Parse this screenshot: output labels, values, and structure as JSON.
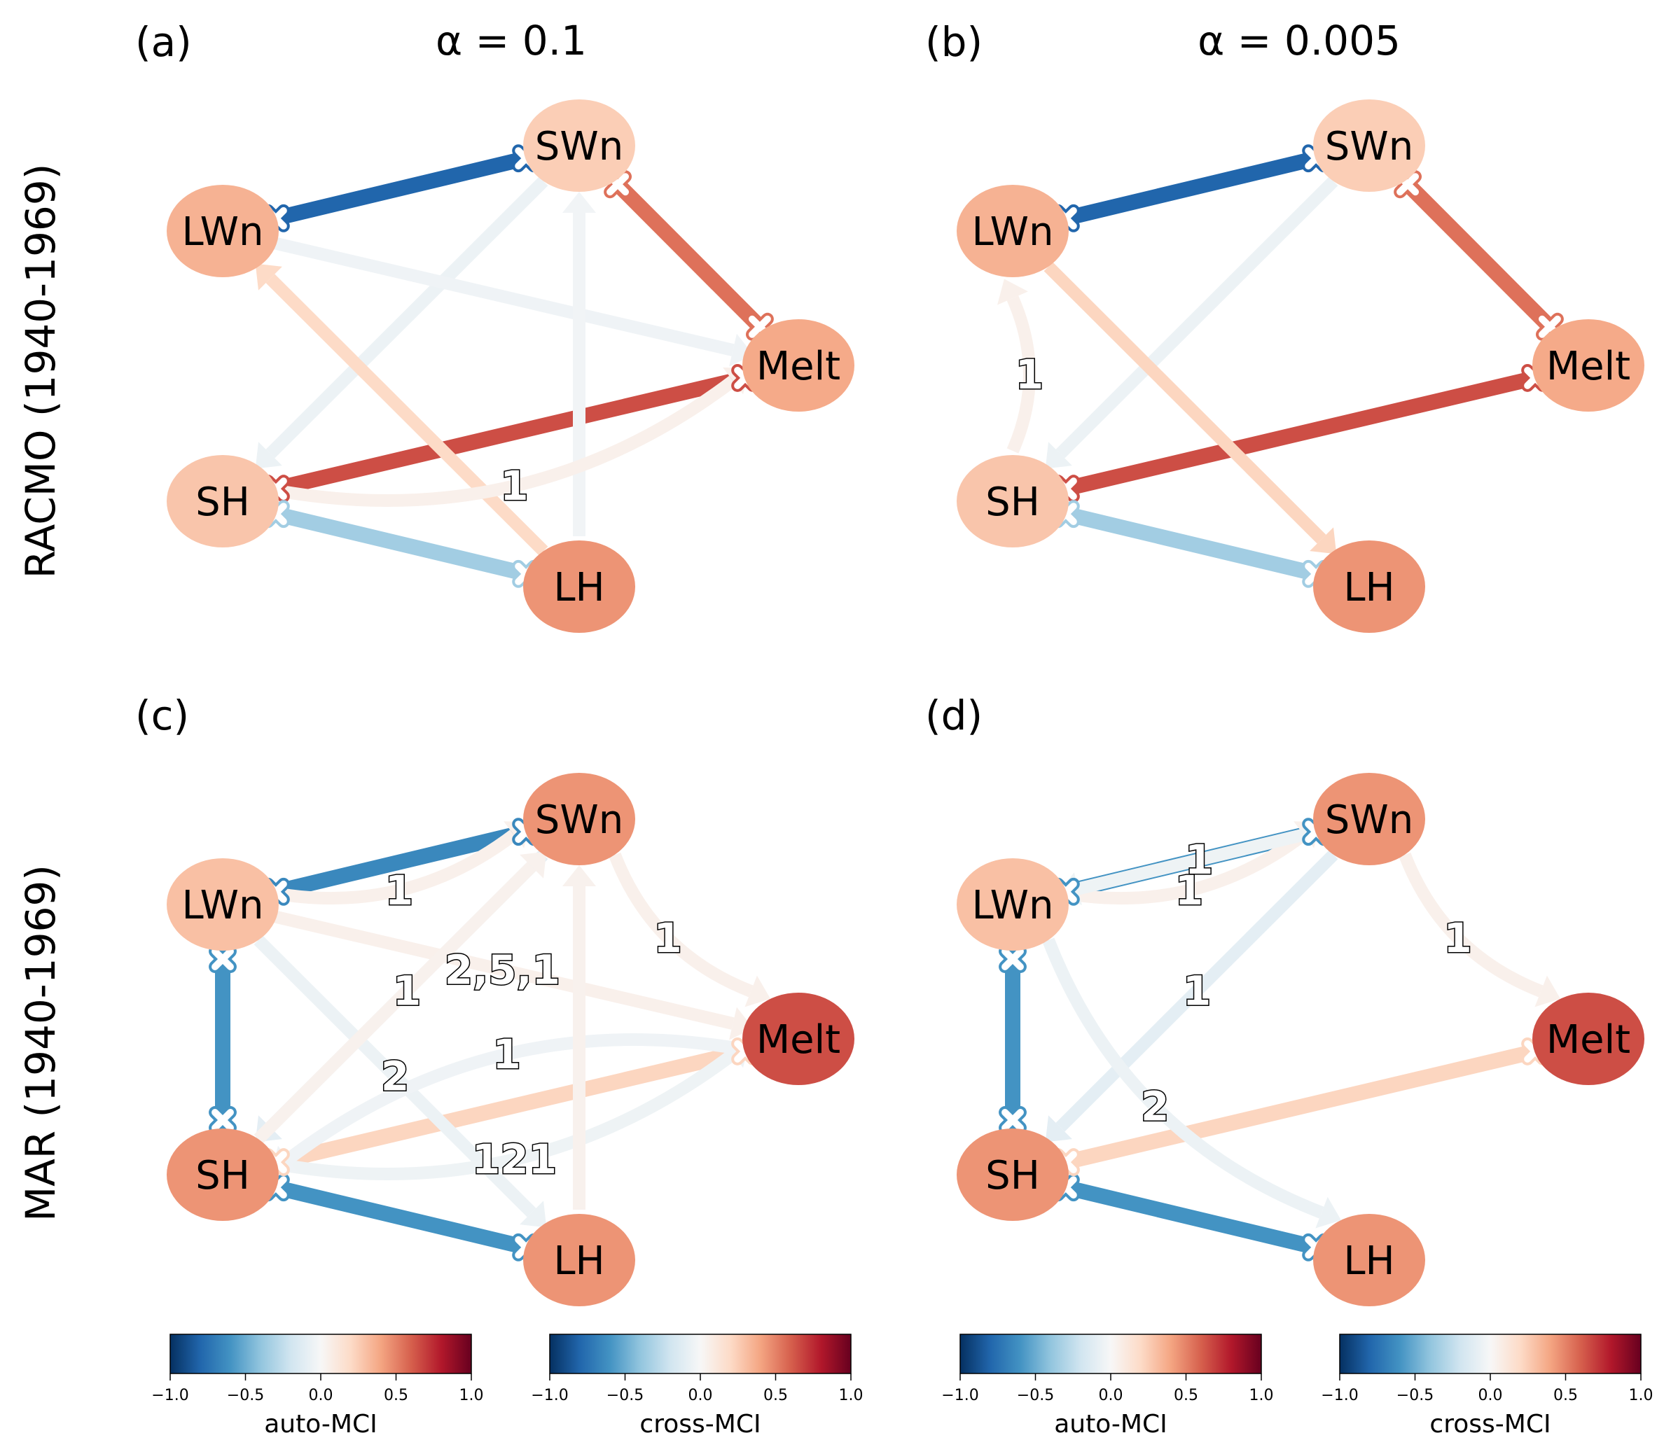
{
  "column_titles": {
    "a": "α = 0.1",
    "b": "α = 0.005"
  },
  "row_labels": {
    "top": "RACMO (1940-1969)",
    "bottom": "MAR (1940-1969)"
  },
  "panels": [
    {
      "id": "a",
      "label": "(a)",
      "nodes": [
        {
          "name": "SWn",
          "value": 0.25
        },
        {
          "name": "LWn",
          "value": 0.35
        },
        {
          "name": "Melt",
          "value": 0.38
        },
        {
          "name": "SH",
          "value": 0.28
        },
        {
          "name": "LH",
          "value": 0.45
        }
      ],
      "links": [
        {
          "from": "LWn",
          "to": "SWn",
          "value": -0.8,
          "lag": "",
          "directed": false
        },
        {
          "from": "SWn",
          "to": "Melt",
          "value": 0.55,
          "lag": "",
          "directed": false
        },
        {
          "from": "SH",
          "to": "Melt",
          "value": 0.65,
          "lag": "",
          "directed": false
        },
        {
          "from": "SH",
          "to": "LH",
          "value": -0.35,
          "lag": "",
          "directed": false
        },
        {
          "from": "SWn",
          "to": "SH",
          "value": -0.06,
          "lag": "",
          "directed": true
        },
        {
          "from": "LWn",
          "to": "Melt",
          "value": -0.04,
          "lag": "",
          "directed": true
        },
        {
          "from": "LH",
          "to": "LWn",
          "value": 0.2,
          "lag": "",
          "directed": true
        },
        {
          "from": "LH",
          "to": "SWn",
          "value": -0.03,
          "lag": "",
          "directed": true
        },
        {
          "from": "SH",
          "to": "Melt",
          "value": 0.05,
          "lag": "1",
          "directed": true,
          "curved": true
        }
      ]
    },
    {
      "id": "b",
      "label": "(b)",
      "nodes": [
        {
          "name": "SWn",
          "value": 0.25
        },
        {
          "name": "LWn",
          "value": 0.35
        },
        {
          "name": "Melt",
          "value": 0.38
        },
        {
          "name": "SH",
          "value": 0.28
        },
        {
          "name": "LH",
          "value": 0.45
        }
      ],
      "links": [
        {
          "from": "LWn",
          "to": "SWn",
          "value": -0.8,
          "lag": "",
          "directed": false
        },
        {
          "from": "SWn",
          "to": "Melt",
          "value": 0.55,
          "lag": "",
          "directed": false
        },
        {
          "from": "SH",
          "to": "Melt",
          "value": 0.65,
          "lag": "",
          "directed": false
        },
        {
          "from": "SH",
          "to": "LH",
          "value": -0.35,
          "lag": "",
          "directed": false
        },
        {
          "from": "SWn",
          "to": "SH",
          "value": -0.06,
          "lag": "",
          "directed": true
        },
        {
          "from": "LWn",
          "to": "LH",
          "value": 0.22,
          "lag": "",
          "directed": true
        },
        {
          "from": "SH",
          "to": "LWn",
          "value": 0.05,
          "lag": "1",
          "directed": true,
          "curved": true
        }
      ]
    },
    {
      "id": "c",
      "label": "(c)",
      "nodes": [
        {
          "name": "SWn",
          "value": 0.45
        },
        {
          "name": "LWn",
          "value": 0.3
        },
        {
          "name": "Melt",
          "value": 0.65
        },
        {
          "name": "SH",
          "value": 0.45
        },
        {
          "name": "LH",
          "value": 0.45
        }
      ],
      "links": [
        {
          "from": "LWn",
          "to": "SWn",
          "value": -0.65,
          "lag": "",
          "directed": false
        },
        {
          "from": "LWn",
          "to": "SH",
          "value": -0.6,
          "lag": "",
          "directed": false
        },
        {
          "from": "SH",
          "to": "LH",
          "value": -0.6,
          "lag": "",
          "directed": false
        },
        {
          "from": "SH",
          "to": "Melt",
          "value": 0.22,
          "lag": "",
          "directed": false
        },
        {
          "from": "LWn",
          "to": "SWn",
          "value": 0.05,
          "lag": "1",
          "directed": true,
          "curved": true
        },
        {
          "from": "SWn",
          "to": "Melt",
          "value": 0.05,
          "lag": "1",
          "directed": true,
          "curved": true
        },
        {
          "from": "SWn",
          "to": "SH",
          "value": -0.1,
          "lag": "1",
          "directed": true
        },
        {
          "from": "LWn",
          "to": "LH",
          "value": -0.06,
          "lag": "2",
          "directed": true
        },
        {
          "from": "SH",
          "to": "Melt",
          "value": -0.05,
          "lag": "121",
          "directed": true,
          "curved": true
        },
        {
          "from": "LWn",
          "to": "Melt",
          "value": 0.05,
          "lag": "2,5,1",
          "directed": true
        },
        {
          "from": "Melt",
          "to": "SH",
          "value": -0.04,
          "lag": "1",
          "directed": true,
          "curved": true
        },
        {
          "from": "LH",
          "to": "SWn",
          "value": 0.04,
          "lag": "",
          "directed": true
        },
        {
          "from": "SH",
          "to": "SWn",
          "value": 0.04,
          "lag": "",
          "directed": true
        }
      ]
    },
    {
      "id": "d",
      "label": "(d)",
      "nodes": [
        {
          "name": "SWn",
          "value": 0.45
        },
        {
          "name": "LWn",
          "value": 0.3
        },
        {
          "name": "Melt",
          "value": 0.65
        },
        {
          "name": "SH",
          "value": 0.45
        },
        {
          "name": "LH",
          "value": 0.45
        }
      ],
      "links": [
        {
          "from": "LWn",
          "to": "SWn",
          "value": -0.6,
          "lag": "",
          "directed": false
        },
        {
          "from": "LWn",
          "to": "SH",
          "value": -0.6,
          "lag": "",
          "directed": false
        },
        {
          "from": "SH",
          "to": "LH",
          "value": -0.6,
          "lag": "",
          "directed": false
        },
        {
          "from": "SH",
          "to": "Melt",
          "value": 0.22,
          "lag": "",
          "directed": false
        },
        {
          "from": "LWn",
          "to": "SWn",
          "value": 0.05,
          "lag": "1",
          "directed": true,
          "curved": true
        },
        {
          "from": "SWn",
          "to": "Melt",
          "value": 0.05,
          "lag": "1",
          "directed": true,
          "curved": true
        },
        {
          "from": "SWn",
          "to": "LWn",
          "value": -0.05,
          "lag": "1",
          "directed": true
        },
        {
          "from": "SWn",
          "to": "SH",
          "value": -0.1,
          "lag": "1",
          "directed": true
        },
        {
          "from": "LWn",
          "to": "LH",
          "value": -0.06,
          "lag": "2",
          "directed": true,
          "curved": true
        }
      ]
    }
  ],
  "colorbars": [
    {
      "label": "auto-MCI",
      "ticks": [
        "−1.0",
        "−0.5",
        "0.0",
        "0.5",
        "1.0"
      ]
    },
    {
      "label": "cross-MCI",
      "ticks": [
        "−1.0",
        "−0.5",
        "0.0",
        "0.5",
        "1.0"
      ]
    },
    {
      "label": "auto-MCI",
      "ticks": [
        "−1.0",
        "−0.5",
        "0.0",
        "0.5",
        "1.0"
      ]
    },
    {
      "label": "cross-MCI",
      "ticks": [
        "−1.0",
        "−0.5",
        "0.0",
        "0.5",
        "1.0"
      ]
    }
  ],
  "colormap": "RdBu_r"
}
